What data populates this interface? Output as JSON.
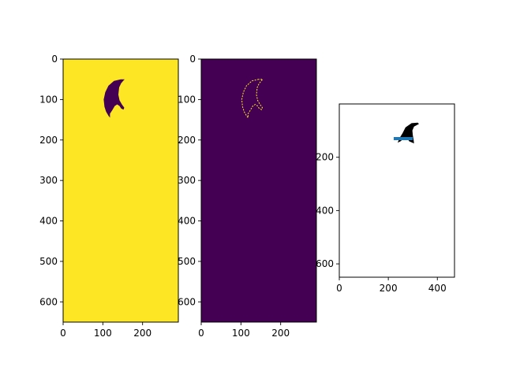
{
  "chart_data": [
    {
      "type": "heatmap",
      "colormap": "viridis",
      "colors": {
        "background": "#fde725",
        "shape": "#440154"
      },
      "xlim": [
        0,
        290
      ],
      "ylim": [
        650,
        0
      ],
      "xticks": [
        0,
        100,
        200
      ],
      "yticks": [
        0,
        100,
        200,
        300,
        400,
        500,
        600
      ],
      "xtick_labels": [
        "0",
        "100",
        "200"
      ],
      "ytick_labels": [
        "0",
        "100",
        "200",
        "300",
        "400",
        "500",
        "600"
      ],
      "title": "",
      "xlabel": "",
      "ylabel": "",
      "grid": false,
      "image_content": "filled binary mask (background=1, shape=0)",
      "shape_outline": [
        [
          145,
          50
        ],
        [
          128,
          54
        ],
        [
          114,
          66
        ],
        [
          106,
          82
        ],
        [
          102,
          100
        ],
        [
          104,
          118
        ],
        [
          108,
          130
        ],
        [
          114,
          140
        ],
        [
          118,
          145
        ],
        [
          118,
          135
        ],
        [
          124,
          126
        ],
        [
          130,
          116
        ],
        [
          136,
          112
        ],
        [
          142,
          116
        ],
        [
          146,
          122
        ],
        [
          152,
          125
        ],
        [
          154,
          120
        ],
        [
          148,
          112
        ],
        [
          142,
          102
        ],
        [
          139,
          88
        ],
        [
          141,
          70
        ],
        [
          146,
          60
        ],
        [
          152,
          53
        ],
        [
          155,
          50
        ]
      ]
    },
    {
      "type": "heatmap",
      "colormap": "viridis",
      "colors": {
        "background": "#440154",
        "shape": "#fde725"
      },
      "xlim": [
        0,
        290
      ],
      "ylim": [
        650,
        0
      ],
      "xticks": [
        0,
        100,
        200
      ],
      "yticks": [
        0,
        100,
        200,
        300,
        400,
        500,
        600
      ],
      "xtick_labels": [
        "0",
        "100",
        "200"
      ],
      "ytick_labels": [
        "0",
        "100",
        "200",
        "300",
        "400",
        "500",
        "600"
      ],
      "title": "",
      "xlabel": "",
      "ylabel": "",
      "grid": false,
      "image_content": "edge map of mask (edges=1, background=0)",
      "shape_outline": [
        [
          145,
          50
        ],
        [
          128,
          54
        ],
        [
          114,
          66
        ],
        [
          106,
          82
        ],
        [
          102,
          100
        ],
        [
          104,
          118
        ],
        [
          108,
          130
        ],
        [
          114,
          140
        ],
        [
          118,
          145
        ],
        [
          118,
          135
        ],
        [
          124,
          126
        ],
        [
          130,
          116
        ],
        [
          136,
          112
        ],
        [
          142,
          116
        ],
        [
          146,
          122
        ],
        [
          152,
          125
        ],
        [
          154,
          120
        ],
        [
          148,
          112
        ],
        [
          142,
          102
        ],
        [
          139,
          88
        ],
        [
          141,
          70
        ],
        [
          146,
          60
        ],
        [
          152,
          53
        ],
        [
          155,
          50
        ]
      ]
    },
    {
      "type": "scatter",
      "colors": {
        "background": "#ffffff",
        "shape": "#000000",
        "line": "#1f77b4"
      },
      "xlim": [
        0,
        470
      ],
      "ylim": [
        650,
        0
      ],
      "xticks": [
        0,
        200,
        400
      ],
      "yticks": [
        200,
        400,
        600
      ],
      "xtick_labels": [
        "0",
        "200",
        "400"
      ],
      "ytick_labels": [
        "200",
        "400",
        "600"
      ],
      "title": "",
      "xlabel": "",
      "ylabel": "",
      "grid": false,
      "shape_outline": [
        [
          320,
          70
        ],
        [
          295,
          72
        ],
        [
          270,
          88
        ],
        [
          258,
          110
        ],
        [
          248,
          125
        ],
        [
          238,
          145
        ],
        [
          250,
          140
        ],
        [
          262,
          130
        ],
        [
          275,
          125
        ],
        [
          285,
          140
        ],
        [
          305,
          148
        ],
        [
          303,
          132
        ],
        [
          300,
          118
        ],
        [
          298,
          100
        ],
        [
          305,
          85
        ],
        [
          325,
          75
        ]
      ],
      "line": {
        "x": [
          222,
          300
        ],
        "y": [
          130,
          130
        ]
      }
    }
  ]
}
